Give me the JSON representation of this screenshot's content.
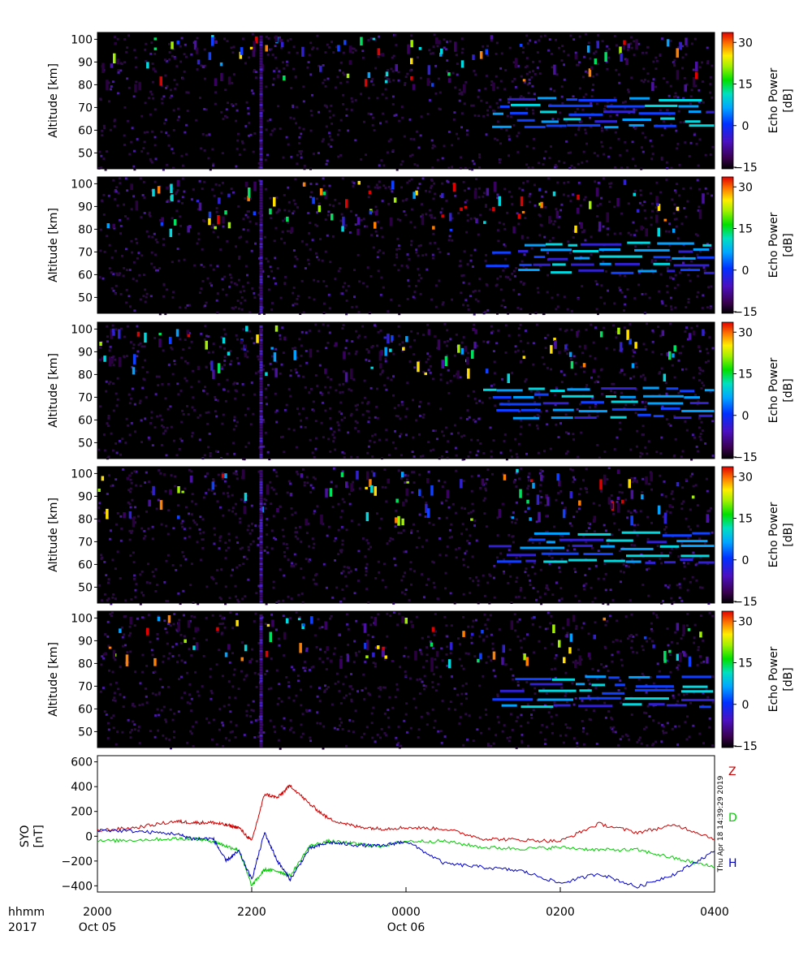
{
  "panels": [
    {
      "ylabel": "Altitude [km]",
      "yticks": [
        "100",
        "90",
        "80",
        "70",
        "60",
        "50"
      ],
      "cbar_label": "Echo Power\n[dB]",
      "cbar_ticks": [
        "30",
        "15",
        "0",
        "−15"
      ]
    },
    {
      "ylabel": "Altitude [km]",
      "yticks": [
        "100",
        "90",
        "80",
        "70",
        "60",
        "50"
      ],
      "cbar_label": "Echo Power\n[dB]",
      "cbar_ticks": [
        "30",
        "15",
        "0",
        "−15"
      ]
    },
    {
      "ylabel": "Altitude [km]",
      "yticks": [
        "100",
        "90",
        "80",
        "70",
        "60",
        "50"
      ],
      "cbar_label": "Echo Power\n[dB]",
      "cbar_ticks": [
        "30",
        "15",
        "0",
        "−15"
      ]
    },
    {
      "ylabel": "Altitude [km]",
      "yticks": [
        "100",
        "90",
        "80",
        "70",
        "60",
        "50"
      ],
      "cbar_label": "Echo Power\n[dB]",
      "cbar_ticks": [
        "30",
        "15",
        "0",
        "−15"
      ]
    },
    {
      "ylabel": "Altitude [km]",
      "yticks": [
        "100",
        "90",
        "80",
        "70",
        "60",
        "50"
      ],
      "cbar_label": "Echo Power\n[dB]",
      "cbar_ticks": [
        "30",
        "15",
        "0",
        "−15"
      ]
    }
  ],
  "mag": {
    "ylabel_line1": "SYO",
    "ylabel_line2": "[nT]",
    "yticks": [
      "600",
      "400",
      "200",
      "0",
      "−200",
      "−400"
    ],
    "components": [
      {
        "name": "Z",
        "color": "#cc0000"
      },
      {
        "name": "D",
        "color": "#00cc00"
      },
      {
        "name": "H",
        "color": "#0000cc"
      }
    ],
    "timestamp": "Thu Apr 18 14:39:29 2019"
  },
  "xaxis": {
    "row1_label": "hhmm",
    "row2_label": "2017",
    "ticks": [
      {
        "time": "2000",
        "date": "Oct 05"
      },
      {
        "time": "2200",
        "date": ""
      },
      {
        "time": "0000",
        "date": "Oct 06"
      },
      {
        "time": "0200",
        "date": ""
      },
      {
        "time": "0400",
        "date": ""
      }
    ]
  },
  "chart_data": [
    {
      "type": "heatmap",
      "panel_count": 5,
      "xlabel": "hhmm 2017",
      "x_range": [
        "2017-10-05 20:00",
        "2017-10-06 04:00"
      ],
      "ylabel": "Altitude [km]",
      "ylim": [
        43,
        103
      ],
      "colorbar_label": "Echo Power [dB]",
      "colorbar_range": [
        -15,
        33
      ],
      "colormap": "rainbow (black/purple to red)"
    },
    {
      "type": "line",
      "ylabel": "SYO [nT]",
      "ylim": [
        -450,
        650
      ],
      "x_range": [
        "2017-10-05 20:00",
        "2017-10-06 04:00"
      ],
      "x": [
        "20:00",
        "20:30",
        "21:00",
        "21:15",
        "21:30",
        "21:40",
        "21:50",
        "22:00",
        "22:10",
        "22:20",
        "22:30",
        "22:45",
        "23:00",
        "23:20",
        "23:40",
        "00:00",
        "00:30",
        "01:00",
        "01:30",
        "02:00",
        "02:30",
        "03:00",
        "03:30",
        "04:00"
      ],
      "series": [
        {
          "name": "Z",
          "values": [
            45,
            70,
            120,
            110,
            110,
            90,
            70,
            -40,
            340,
            310,
            410,
            260,
            140,
            80,
            60,
            70,
            60,
            -20,
            -30,
            -40,
            100,
            30,
            90,
            -20
          ]
        },
        {
          "name": "D",
          "values": [
            -40,
            -30,
            -20,
            -20,
            -40,
            -80,
            -110,
            -400,
            -270,
            -280,
            -320,
            -80,
            -40,
            -60,
            -80,
            -40,
            -40,
            -90,
            -100,
            -90,
            -110,
            -110,
            -180,
            -250
          ]
        },
        {
          "name": "H",
          "values": [
            50,
            40,
            20,
            -20,
            -20,
            -200,
            -120,
            -350,
            30,
            -200,
            -350,
            -100,
            -50,
            -70,
            -80,
            -40,
            -220,
            -250,
            -280,
            -380,
            -300,
            -410,
            -300,
            -120
          ]
        }
      ]
    }
  ]
}
